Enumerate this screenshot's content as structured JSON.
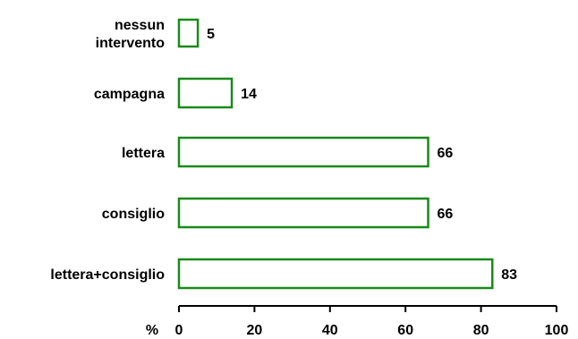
{
  "chart_data": {
    "type": "bar",
    "orientation": "horizontal",
    "categories": [
      [
        "nessun",
        "intervento"
      ],
      [
        "campagna"
      ],
      [
        "lettera"
      ],
      [
        "consiglio"
      ],
      [
        "lettera+consiglio"
      ]
    ],
    "values": [
      5,
      14,
      66,
      66,
      83
    ],
    "value_labels": [
      "5",
      "14",
      "66",
      "66",
      "83"
    ],
    "xlabel": "%",
    "xlim": [
      0,
      100
    ],
    "xticks": [
      0,
      20,
      40,
      60,
      80,
      100
    ],
    "xtick_labels": [
      "0",
      "20",
      "40",
      "60",
      "80",
      "100"
    ],
    "bar_fill": "#ffffff",
    "bar_stroke": "#1a8a1a",
    "grid": false,
    "legend": "none"
  }
}
